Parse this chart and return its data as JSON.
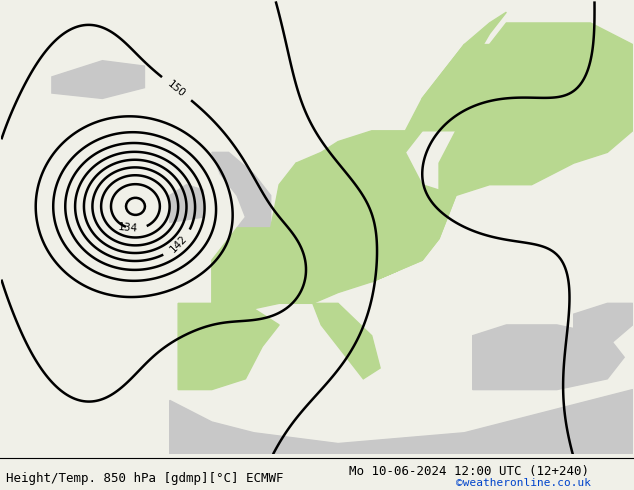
{
  "title_left": "Height/Temp. 850 hPa [gdmp][°C] ECMWF",
  "title_right": "Mo 10-06-2024 12:00 UTC (12+240)",
  "credit": "©weatheronline.co.uk",
  "bg_color": "#f0f0e8",
  "land_color_green": "#b8d890",
  "land_color_gray": "#c8c8c8",
  "sea_color": "#e0e0d8",
  "contour_geo_color": "#000000",
  "contour_temp_green": "#88cc00",
  "contour_temp_cyan": "#00aaaa",
  "contour_temp_orange": "#ff8800",
  "contour_temp_red": "#ff2020",
  "contour_temp_pink": "#ff00cc",
  "font_size_bottom": 9.0,
  "font_size_credit": 8.0
}
